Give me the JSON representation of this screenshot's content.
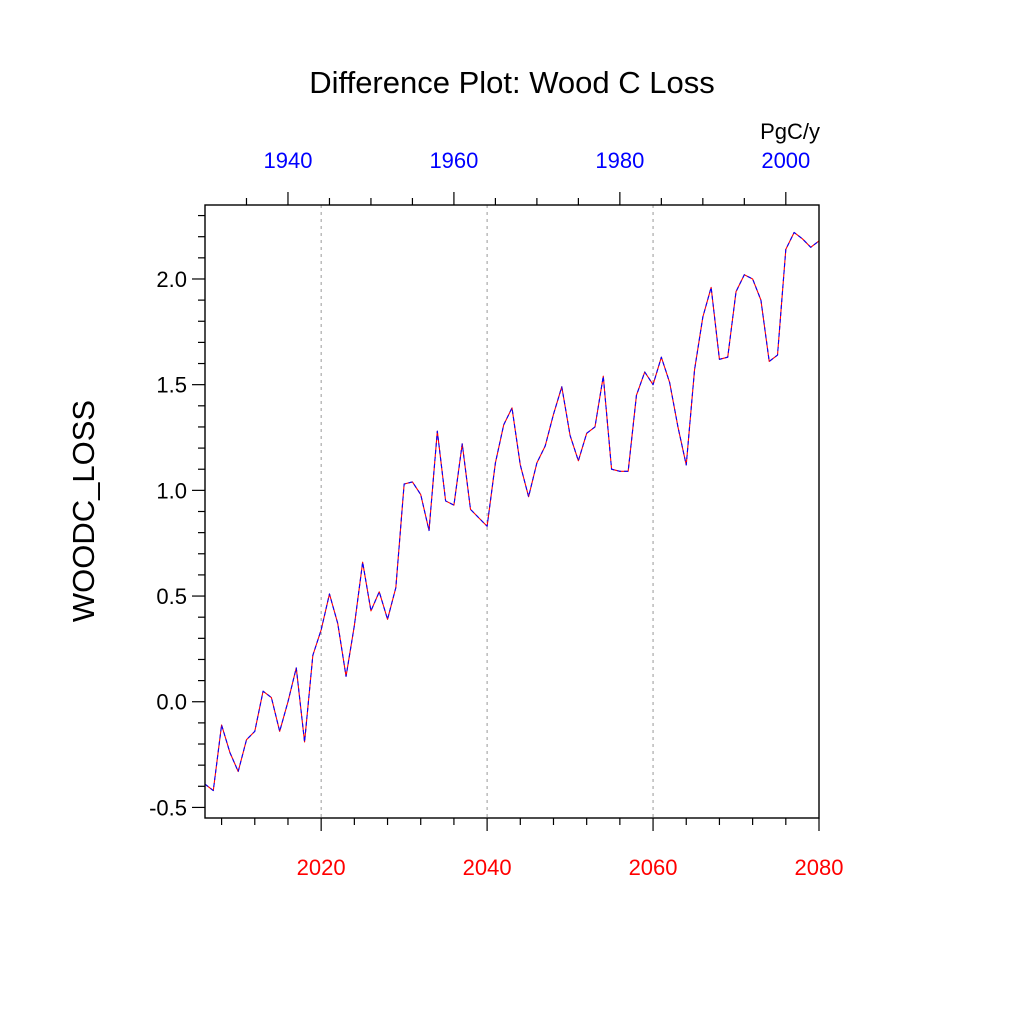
{
  "chart_data": {
    "type": "line",
    "title": "Difference Plot: Wood C Loss",
    "units": "PgC/y",
    "ylabel": "WOODC_LOSS",
    "ylim": [
      -0.55,
      2.35
    ],
    "y_ticks": [
      -0.5,
      0.0,
      0.5,
      1.0,
      1.5,
      2.0
    ],
    "y_tick_labels": [
      "-0.5",
      "0.0",
      "0.5",
      "1.0",
      "1.5",
      "2.0"
    ],
    "x_bottom": {
      "range": [
        2006,
        2080
      ],
      "ticks": [
        2020,
        2040,
        2060,
        2080
      ],
      "tick_labels": [
        "2020",
        "2040",
        "2060",
        "2080"
      ],
      "color": "#ff0000"
    },
    "x_top": {
      "range": [
        1930,
        2004
      ],
      "ticks": [
        1940,
        1960,
        1980,
        2000
      ],
      "tick_labels": [
        "1940",
        "1960",
        "1980",
        "2000"
      ],
      "color": "#0000ff"
    },
    "grid": "vertical-dotted",
    "series": [
      {
        "color": "#ff0000",
        "style": "solid",
        "x": [
          2006,
          2007,
          2008,
          2009,
          2010,
          2011,
          2012,
          2013,
          2014,
          2015,
          2016,
          2017,
          2018,
          2019,
          2020,
          2021,
          2022,
          2023,
          2024,
          2025,
          2026,
          2027,
          2028,
          2029,
          2030,
          2031,
          2032,
          2033,
          2034,
          2035,
          2036,
          2037,
          2038,
          2039,
          2040,
          2041,
          2042,
          2043,
          2044,
          2045,
          2046,
          2047,
          2048,
          2049,
          2050,
          2051,
          2052,
          2053,
          2054,
          2055,
          2056,
          2057,
          2058,
          2059,
          2060,
          2061,
          2062,
          2063,
          2064,
          2065,
          2066,
          2067,
          2068,
          2069,
          2070,
          2071,
          2072,
          2073,
          2074,
          2075,
          2076,
          2077,
          2078,
          2079,
          2080
        ],
        "values": [
          -0.39,
          -0.42,
          -0.11,
          -0.24,
          -0.33,
          -0.18,
          -0.14,
          0.05,
          0.02,
          -0.14,
          0.0,
          0.16,
          -0.19,
          0.22,
          0.34,
          0.51,
          0.37,
          0.12,
          0.36,
          0.66,
          0.43,
          0.52,
          0.39,
          0.54,
          1.03,
          1.04,
          0.98,
          0.81,
          1.28,
          0.95,
          0.93,
          1.22,
          0.91,
          0.87,
          0.83,
          1.13,
          1.31,
          1.39,
          1.12,
          0.97,
          1.13,
          1.21,
          1.36,
          1.49,
          1.26,
          1.14,
          1.27,
          1.3,
          1.54,
          1.1,
          1.09,
          1.09,
          1.45,
          1.56,
          1.5,
          1.63,
          1.51,
          1.3,
          1.12,
          1.57,
          1.82,
          1.96,
          1.62,
          1.63,
          1.94,
          2.02,
          2.0,
          1.9,
          1.61,
          1.64,
          2.14,
          2.22,
          2.19,
          2.15,
          2.18
        ]
      },
      {
        "color": "#0000ff",
        "style": "dashed",
        "x": [
          2006,
          2007,
          2008,
          2009,
          2010,
          2011,
          2012,
          2013,
          2014,
          2015,
          2016,
          2017,
          2018,
          2019,
          2020,
          2021,
          2022,
          2023,
          2024,
          2025,
          2026,
          2027,
          2028,
          2029,
          2030,
          2031,
          2032,
          2033,
          2034,
          2035,
          2036,
          2037,
          2038,
          2039,
          2040,
          2041,
          2042,
          2043,
          2044,
          2045,
          2046,
          2047,
          2048,
          2049,
          2050,
          2051,
          2052,
          2053,
          2054,
          2055,
          2056,
          2057,
          2058,
          2059,
          2060,
          2061,
          2062,
          2063,
          2064,
          2065,
          2066,
          2067,
          2068,
          2069,
          2070,
          2071,
          2072,
          2073,
          2074,
          2075,
          2076,
          2077,
          2078,
          2079,
          2080
        ],
        "values": [
          -0.39,
          -0.42,
          -0.11,
          -0.24,
          -0.33,
          -0.18,
          -0.14,
          0.05,
          0.02,
          -0.14,
          0.0,
          0.16,
          -0.19,
          0.22,
          0.34,
          0.51,
          0.37,
          0.12,
          0.36,
          0.66,
          0.43,
          0.52,
          0.39,
          0.54,
          1.03,
          1.04,
          0.98,
          0.81,
          1.28,
          0.95,
          0.93,
          1.22,
          0.91,
          0.87,
          0.83,
          1.13,
          1.31,
          1.39,
          1.12,
          0.97,
          1.13,
          1.21,
          1.36,
          1.49,
          1.26,
          1.14,
          1.27,
          1.3,
          1.54,
          1.1,
          1.09,
          1.09,
          1.45,
          1.56,
          1.5,
          1.63,
          1.51,
          1.3,
          1.12,
          1.57,
          1.82,
          1.96,
          1.62,
          1.63,
          1.94,
          2.02,
          2.0,
          1.9,
          1.61,
          1.64,
          2.14,
          2.22,
          2.19,
          2.15,
          2.18
        ]
      }
    ]
  }
}
